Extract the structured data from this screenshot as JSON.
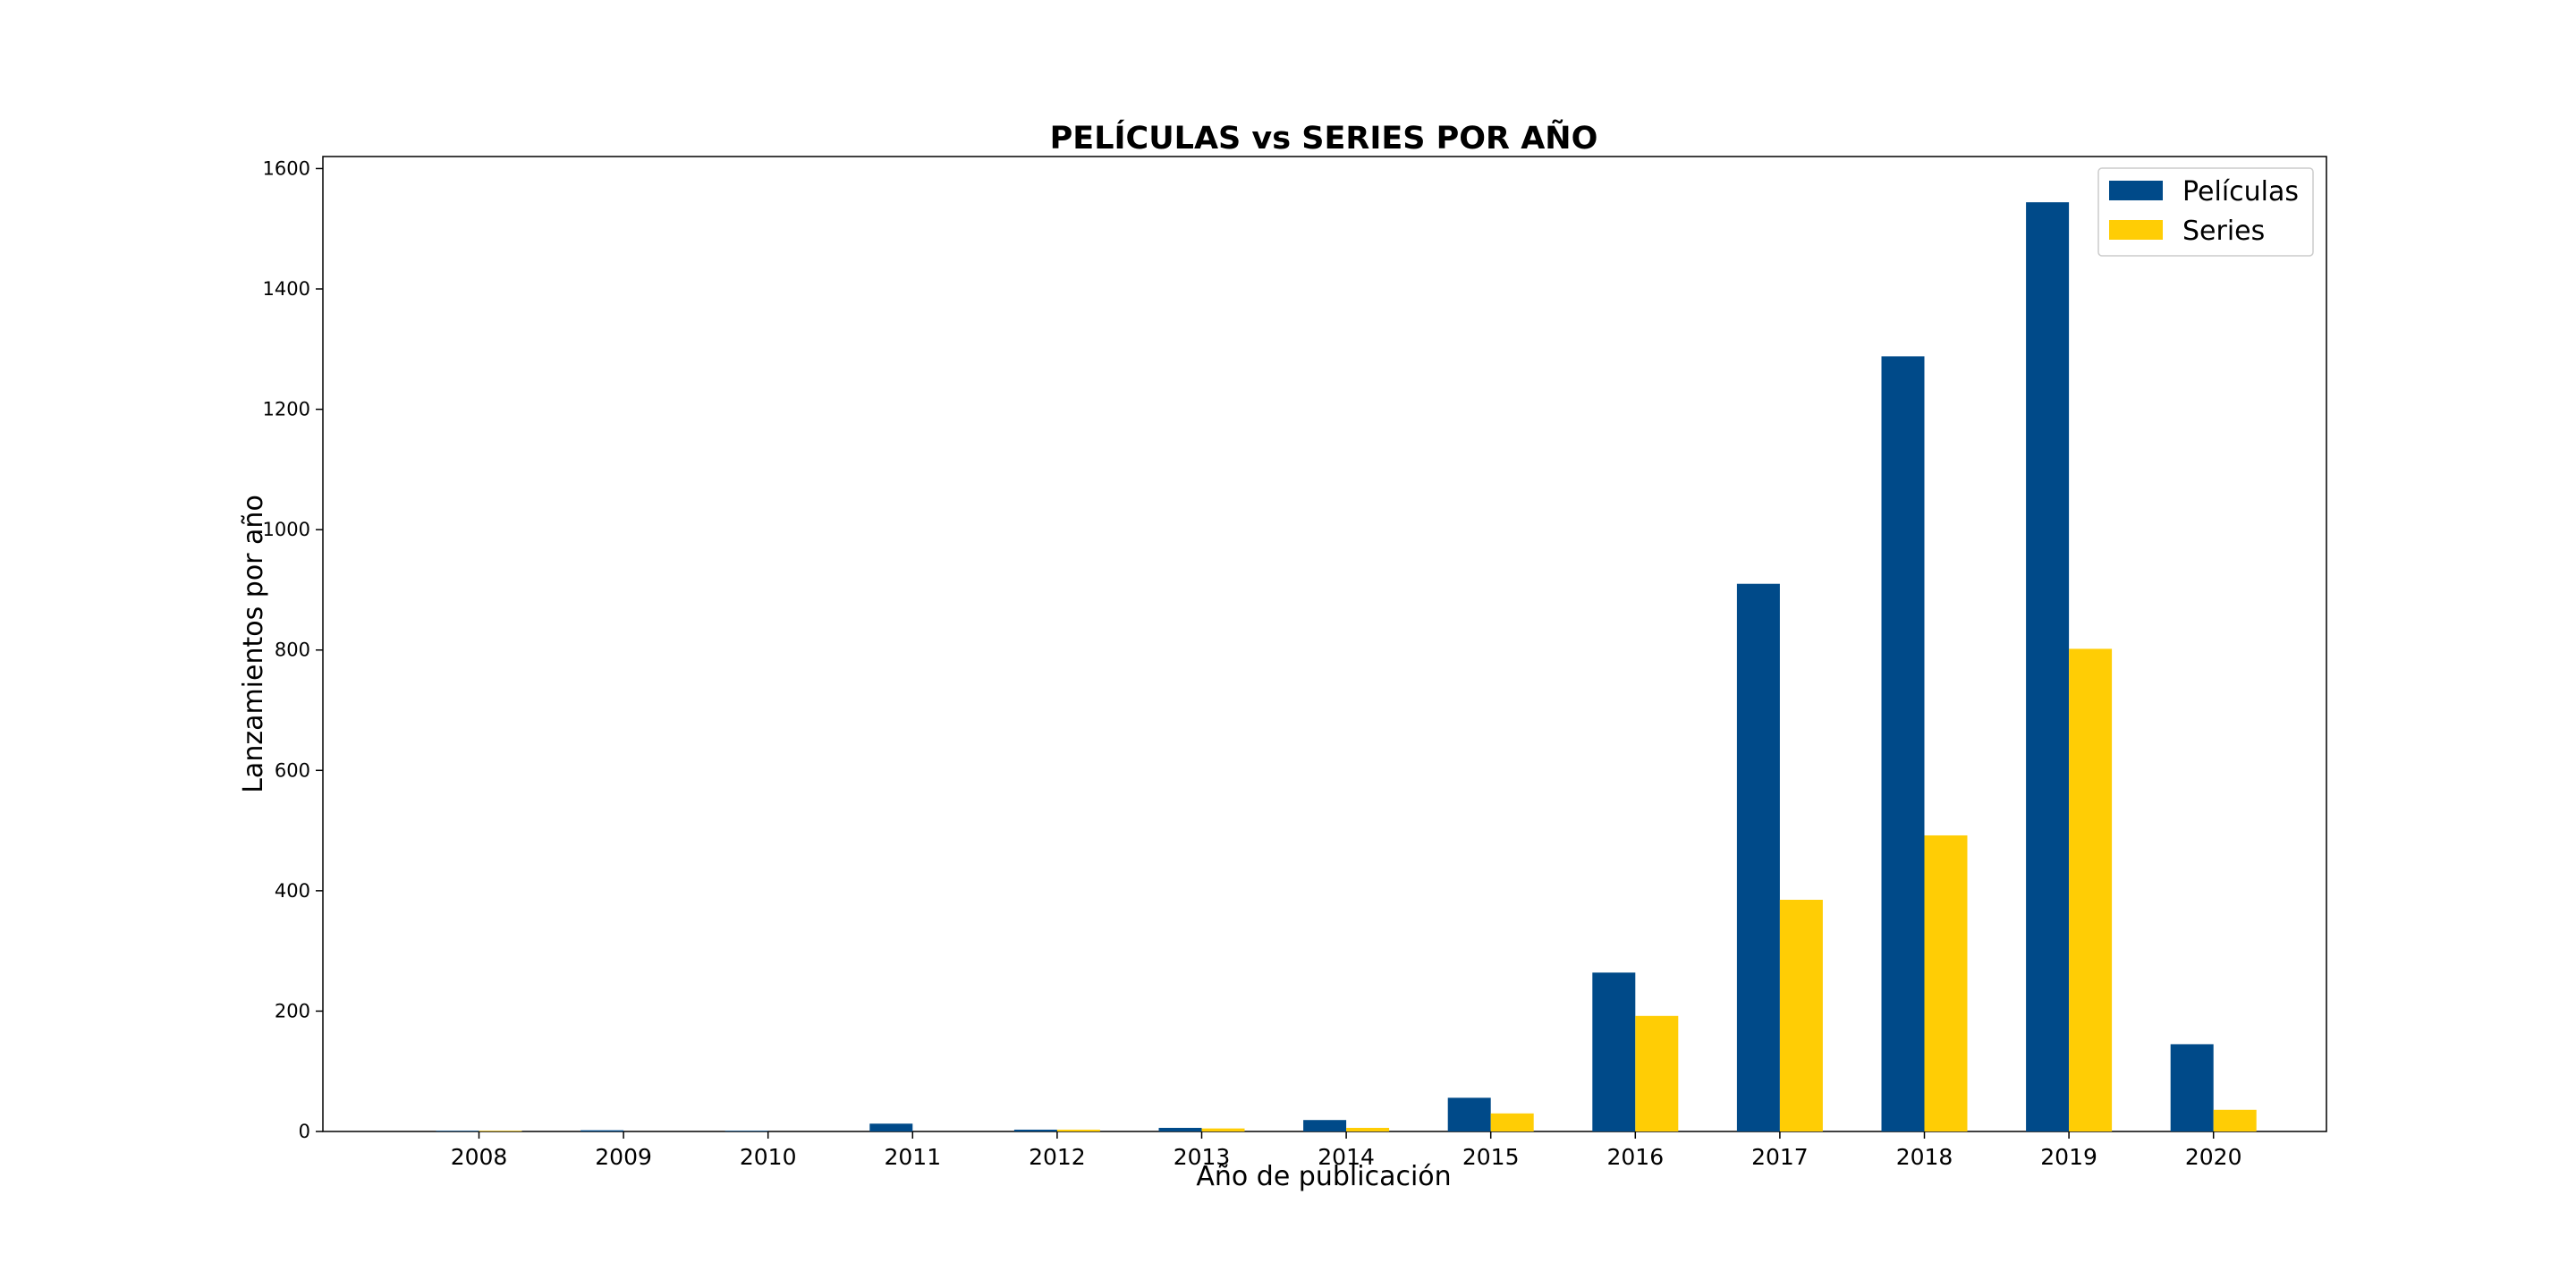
{
  "chart_data": {
    "type": "bar",
    "title": "PELÍCULAS vs SERIES POR AÑO",
    "xlabel": "Año de publicación",
    "ylabel": "Lanzamientos por año",
    "categories": [
      "2008",
      "2009",
      "2010",
      "2011",
      "2012",
      "2013",
      "2014",
      "2015",
      "2016",
      "2017",
      "2018",
      "2019",
      "2020"
    ],
    "series": [
      {
        "name": "Películas",
        "color": "#004a89",
        "values": [
          1,
          2,
          1,
          13,
          3,
          6,
          19,
          56,
          264,
          910,
          1288,
          1544,
          145
        ]
      },
      {
        "name": "Series",
        "color": "#ffcd05",
        "values": [
          1,
          0,
          0,
          0,
          3,
          5,
          6,
          30,
          192,
          385,
          492,
          802,
          36
        ]
      }
    ],
    "ylim": [
      0,
      1620
    ],
    "yticks": [
      0,
      200,
      400,
      600,
      800,
      1000,
      1200,
      1400,
      1600
    ],
    "grid": false,
    "legend": "upper-right"
  }
}
